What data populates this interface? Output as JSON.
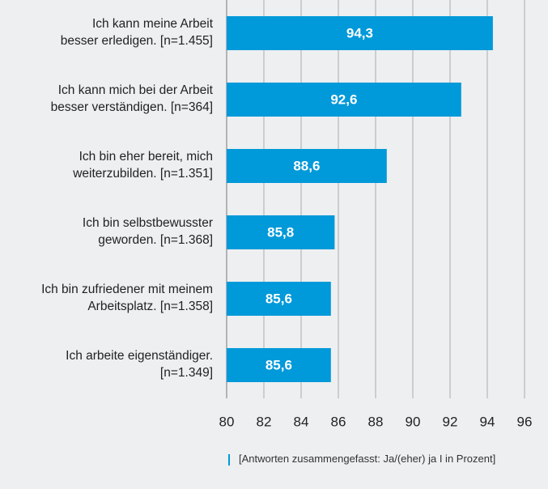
{
  "chart_data": {
    "type": "bar",
    "orientation": "horizontal",
    "categories": [
      "Ich kann meine Arbeit\nbesser erledigen. [n=1.455]",
      "Ich kann mich bei der Arbeit\nbesser verständigen. [n=364]",
      "Ich bin eher bereit, mich\nweiterzubilden. [n=1.351]",
      "Ich bin selbstbewusster\ngeworden. [n=1.368]",
      "Ich bin zufriedener mit meinem\nArbeitsplatz. [n=1.358]",
      "Ich arbeite eigenständiger.\n[n=1.349]"
    ],
    "values": [
      94.3,
      92.6,
      88.6,
      85.8,
      85.6,
      85.6
    ],
    "value_labels": [
      "94,3",
      "92,6",
      "88,6",
      "85,8",
      "85,6",
      "85,6"
    ],
    "color": "#0099d9",
    "xlim": [
      80,
      96
    ],
    "xticks": [
      80,
      82,
      84,
      86,
      88,
      90,
      92,
      94,
      96
    ],
    "grid": true,
    "note": "[Antworten zusammengefasst: Ja/(eher) ja  I  in Prozent]"
  }
}
